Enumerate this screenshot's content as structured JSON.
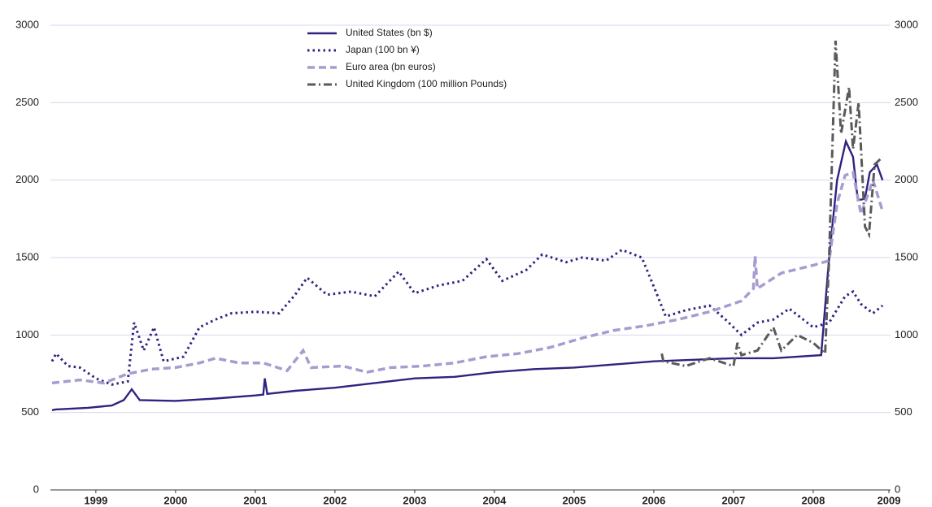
{
  "chart_data": {
    "type": "line",
    "xlim": [
      1998.93,
      2009.47
    ],
    "ylim": [
      0,
      3000
    ],
    "yticks": [
      0,
      500,
      1000,
      1500,
      2000,
      2500,
      3000
    ],
    "xticks": [
      {
        "value": 1999.5,
        "label": "1999"
      },
      {
        "value": 2000.5,
        "label": "2000"
      },
      {
        "value": 2001.5,
        "label": "2001"
      },
      {
        "value": 2002.5,
        "label": "2002"
      },
      {
        "value": 2003.5,
        "label": "2003"
      },
      {
        "value": 2004.5,
        "label": "2004"
      },
      {
        "value": 2005.5,
        "label": "2005"
      },
      {
        "value": 2006.5,
        "label": "2006"
      },
      {
        "value": 2007.5,
        "label": "2007"
      },
      {
        "value": 2008.5,
        "label": "2008"
      },
      {
        "value": 2009.45,
        "label": "2009"
      }
    ],
    "grid": true,
    "legend": "top",
    "series": [
      {
        "name": "United States (bn $)",
        "color": "#2e2380",
        "style": "solid",
        "x": [
          1998.95,
          1999.0,
          1999.4,
          1999.7,
          1999.85,
          1999.95,
          2000.05,
          2000.5,
          2001.0,
          2001.5,
          2001.6,
          2001.62,
          2001.65,
          2002.0,
          2002.5,
          2003.0,
          2003.5,
          2004.0,
          2004.5,
          2005.0,
          2005.5,
          2006.0,
          2006.5,
          2007.0,
          2007.5,
          2008.0,
          2008.6,
          2008.7,
          2008.8,
          2008.91,
          2009.0,
          2009.06,
          2009.15,
          2009.21,
          2009.3,
          2009.37
        ],
        "values": [
          515,
          520,
          530,
          545,
          580,
          650,
          580,
          575,
          590,
          610,
          615,
          720,
          620,
          640,
          660,
          690,
          720,
          730,
          760,
          780,
          790,
          810,
          830,
          840,
          850,
          850,
          870,
          1500,
          2000,
          2250,
          2150,
          1870,
          1880,
          2050,
          2100,
          2000
        ]
      },
      {
        "name": "Japan (100 bn ¥)",
        "color": "#2e2380",
        "style": "dotted",
        "x": [
          1998.95,
          1999.0,
          1999.15,
          1999.3,
          1999.5,
          1999.7,
          1999.9,
          1999.98,
          2000.1,
          2000.23,
          2000.35,
          2000.6,
          2000.8,
          2001.0,
          2001.2,
          2001.5,
          2001.8,
          2002.0,
          2002.15,
          2002.4,
          2002.7,
          2003.0,
          2003.3,
          2003.5,
          2003.8,
          2004.1,
          2004.4,
          2004.6,
          2004.9,
          2005.1,
          2005.4,
          2005.6,
          2005.9,
          2006.1,
          2006.35,
          2006.55,
          2006.65,
          2006.9,
          2007.2,
          2007.4,
          2007.6,
          2007.8,
          2008.0,
          2008.2,
          2008.5,
          2008.7,
          2008.9,
          2009.0,
          2009.1,
          2009.25,
          2009.37
        ],
        "values": [
          830,
          880,
          800,
          790,
          720,
          680,
          700,
          1080,
          900,
          1050,
          830,
          860,
          1050,
          1100,
          1140,
          1150,
          1140,
          1260,
          1370,
          1260,
          1280,
          1250,
          1410,
          1270,
          1320,
          1350,
          1490,
          1350,
          1420,
          1520,
          1470,
          1500,
          1480,
          1550,
          1500,
          1250,
          1120,
          1160,
          1190,
          1100,
          1000,
          1080,
          1100,
          1170,
          1050,
          1080,
          1250,
          1280,
          1200,
          1140,
          1190
        ]
      },
      {
        "name": "Euro area (bn euros)",
        "color": "#a89bd0",
        "style": "dashed",
        "x": [
          1998.95,
          1999.3,
          1999.6,
          1999.9,
          2000.2,
          2000.5,
          2000.8,
          2001.0,
          2001.3,
          2001.6,
          2001.9,
          2002.1,
          2002.2,
          2002.6,
          2002.9,
          2003.2,
          2003.6,
          2004.0,
          2004.4,
          2004.8,
          2005.2,
          2005.6,
          2006.0,
          2006.4,
          2006.8,
          2007.2,
          2007.6,
          2007.75,
          2007.77,
          2007.8,
          2008.1,
          2008.5,
          2008.7,
          2008.8,
          2008.9,
          2009.0,
          2009.1,
          2009.25,
          2009.37
        ],
        "values": [
          690,
          710,
          690,
          750,
          780,
          790,
          820,
          850,
          820,
          820,
          770,
          900,
          790,
          800,
          760,
          790,
          800,
          820,
          860,
          880,
          920,
          980,
          1030,
          1060,
          1100,
          1150,
          1220,
          1300,
          1510,
          1300,
          1400,
          1450,
          1480,
          1850,
          2030,
          2050,
          1780,
          2000,
          1800
        ]
      },
      {
        "name": "United Kingdom (100 million Pounds)",
        "color": "#5a5a5a",
        "style": "dashdot",
        "x": [
          2006.6,
          2006.62,
          2006.9,
          2007.2,
          2007.5,
          2007.55,
          2007.6,
          2007.8,
          2008.0,
          2008.1,
          2008.3,
          2008.5,
          2008.65,
          2008.7,
          2008.78,
          2008.85,
          2008.95,
          2009.0,
          2009.07,
          2009.15,
          2009.2,
          2009.27,
          2009.37
        ],
        "values": [
          880,
          830,
          800,
          850,
          800,
          950,
          870,
          900,
          1050,
          900,
          1000,
          950,
          880,
          1500,
          2900,
          2300,
          2600,
          2200,
          2500,
          1700,
          1650,
          2100,
          2150
        ]
      }
    ]
  }
}
